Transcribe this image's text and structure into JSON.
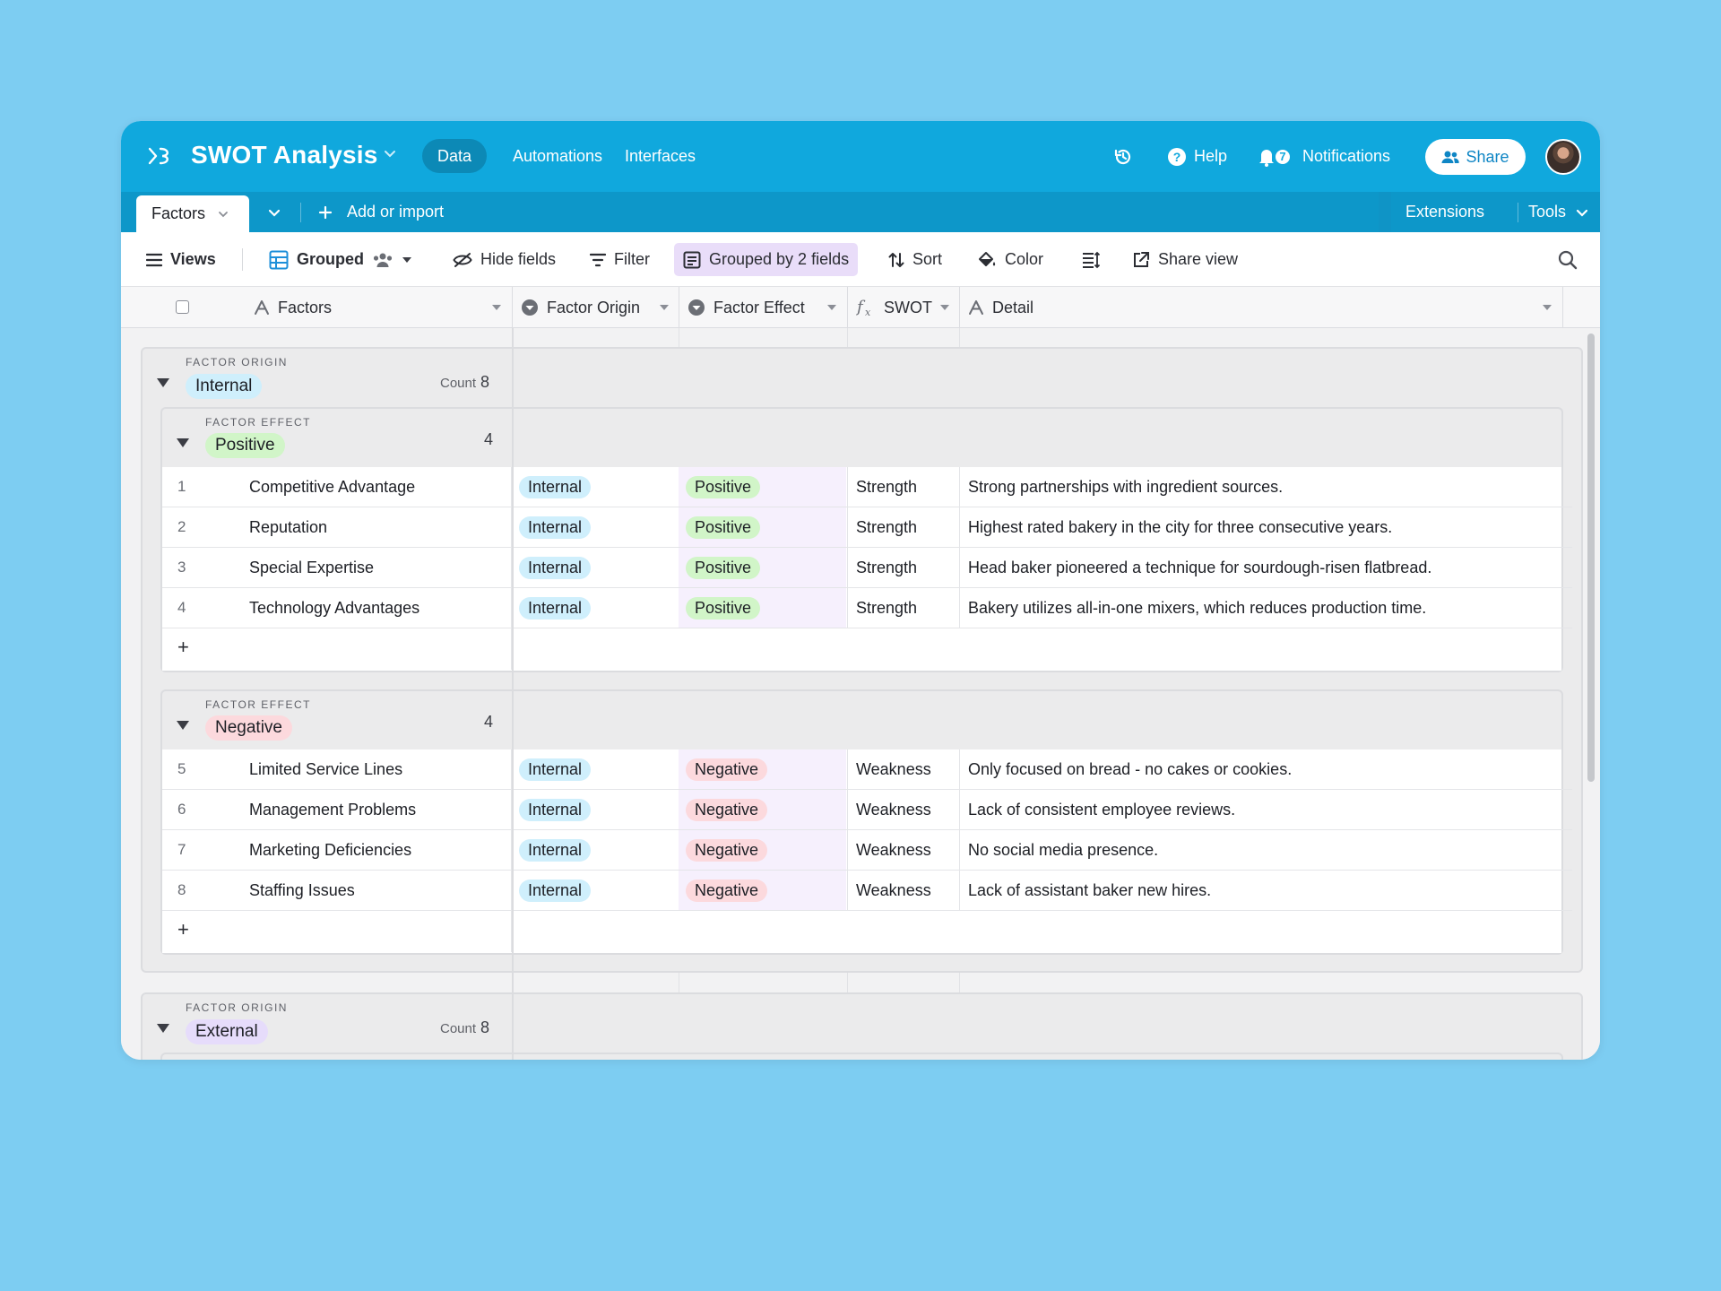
{
  "header": {
    "app_title": "SWOT Analysis",
    "nav": [
      "Data",
      "Automations",
      "Interfaces"
    ],
    "help": "Help",
    "notifications_label": "Notifications",
    "notifications_count": "7",
    "share": "Share"
  },
  "tabbar": {
    "active_tab": "Factors",
    "add_or_import": "Add or import",
    "extensions": "Extensions",
    "tools": "Tools"
  },
  "viewbar": {
    "views": "Views",
    "view_name": "Grouped",
    "hide_fields": "Hide fields",
    "filter": "Filter",
    "grouped_by": "Grouped by 2 fields",
    "sort": "Sort",
    "color": "Color",
    "share_view": "Share view"
  },
  "columns": [
    "Factors",
    "Factor Origin",
    "Factor Effect",
    "SWOT",
    "Detail"
  ],
  "groups": [
    {
      "level1_label": "FACTOR ORIGIN",
      "value": "Internal",
      "count_label": "Count",
      "count": "8",
      "subgroups": [
        {
          "label": "FACTOR EFFECT",
          "value": "Positive",
          "count": "4",
          "rows": [
            {
              "n": "1",
              "factor": "Competitive Advantage",
              "origin": "Internal",
              "effect": "Positive",
              "swot": "Strength",
              "detail": "Strong partnerships with ingredient sources."
            },
            {
              "n": "2",
              "factor": "Reputation",
              "origin": "Internal",
              "effect": "Positive",
              "swot": "Strength",
              "detail": "Highest rated bakery in the city for three consecutive years."
            },
            {
              "n": "3",
              "factor": "Special Expertise",
              "origin": "Internal",
              "effect": "Positive",
              "swot": "Strength",
              "detail": "Head baker pioneered a technique for sourdough-risen flatbread."
            },
            {
              "n": "4",
              "factor": "Technology Advantages",
              "origin": "Internal",
              "effect": "Positive",
              "swot": "Strength",
              "detail": "Bakery utilizes all-in-one mixers, which reduces production time."
            }
          ]
        },
        {
          "label": "FACTOR EFFECT",
          "value": "Negative",
          "count": "4",
          "rows": [
            {
              "n": "5",
              "factor": "Limited Service Lines",
              "origin": "Internal",
              "effect": "Negative",
              "swot": "Weakness",
              "detail": "Only focused on bread - no cakes or cookies."
            },
            {
              "n": "6",
              "factor": "Management Problems",
              "origin": "Internal",
              "effect": "Negative",
              "swot": "Weakness",
              "detail": "Lack of consistent employee reviews."
            },
            {
              "n": "7",
              "factor": "Marketing Deficiencies",
              "origin": "Internal",
              "effect": "Negative",
              "swot": "Weakness",
              "detail": "No social media presence."
            },
            {
              "n": "8",
              "factor": "Staffing Issues",
              "origin": "Internal",
              "effect": "Negative",
              "swot": "Weakness",
              "detail": "Lack of assistant baker new hires."
            }
          ]
        }
      ]
    },
    {
      "level1_label": "FACTOR ORIGIN",
      "value": "External",
      "count_label": "Count",
      "count": "8"
    }
  ],
  "colors": {
    "header_bg": "#10a8dd",
    "tabbar_bg": "#0d97c9",
    "internal_pill": "#cfeffc",
    "positive_pill": "#d1f5c8",
    "negative_pill": "#fcd9dd",
    "external_pill": "#e6dcfb",
    "grouped_by_highlight": "#e9ddf9"
  }
}
